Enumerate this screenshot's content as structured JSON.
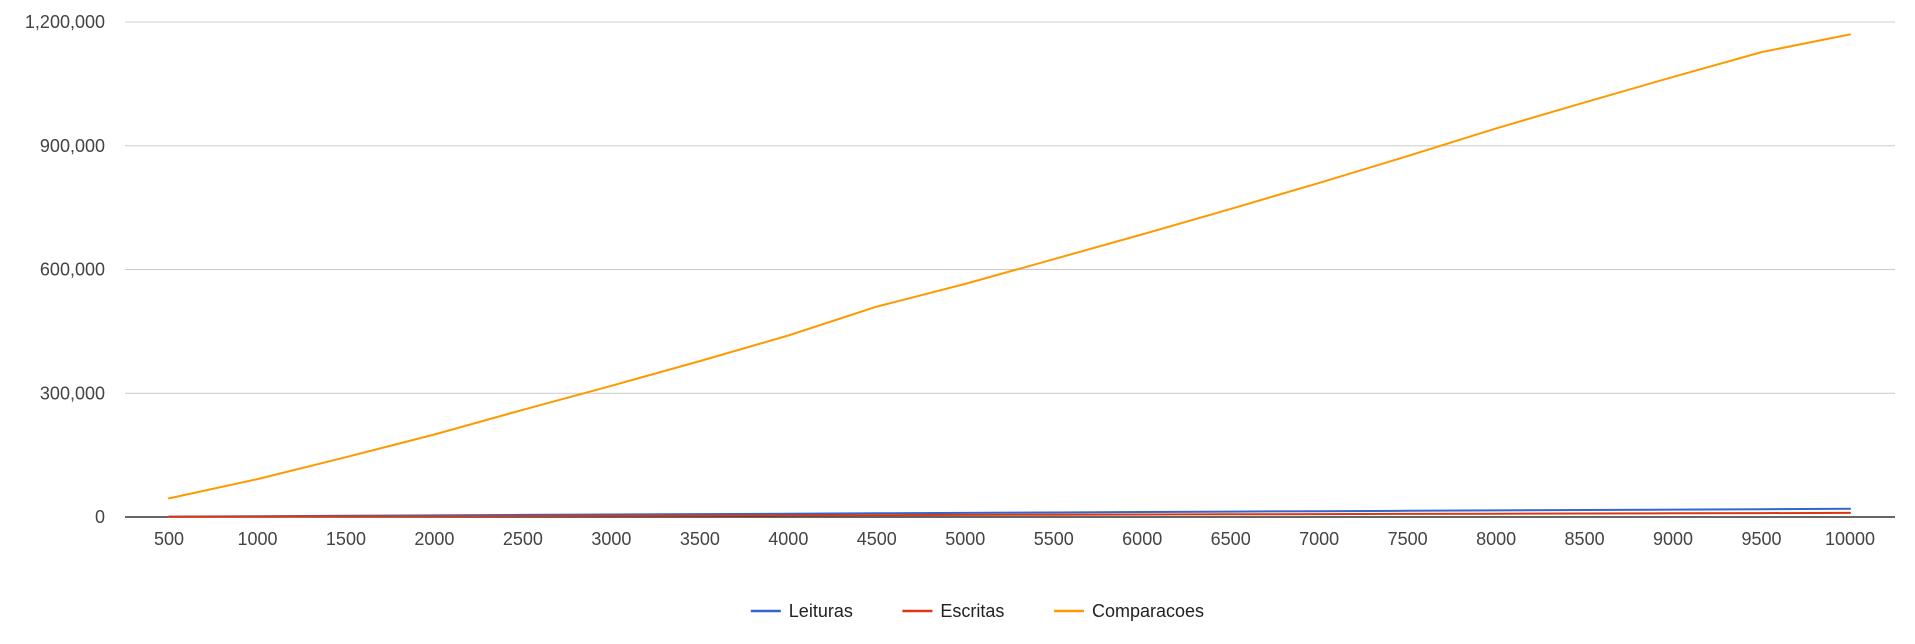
{
  "chart_data": {
    "type": "line",
    "title": "",
    "xlabel": "",
    "ylabel": "",
    "categories": [
      "500",
      "1000",
      "1500",
      "2000",
      "2500",
      "3000",
      "3500",
      "4000",
      "4500",
      "5000",
      "5500",
      "6000",
      "6500",
      "7000",
      "7500",
      "8000",
      "8500",
      "9000",
      "9500",
      "10000"
    ],
    "ylim": [
      0,
      1200000
    ],
    "yticks": [
      0,
      300000,
      600000,
      900000,
      1200000
    ],
    "ytick_labels": [
      "0",
      "300,000",
      "600,000",
      "900,000",
      "1,200,000"
    ],
    "grid": true,
    "legend_position": "bottom",
    "series": [
      {
        "name": "Leituras",
        "color": "#3366cc",
        "values": [
          1000,
          2000,
          3000,
          4000,
          5000,
          6000,
          7000,
          8000,
          9000,
          10000,
          11000,
          12000,
          13000,
          14000,
          15000,
          16000,
          17000,
          18000,
          19000,
          20000
        ]
      },
      {
        "name": "Escritas",
        "color": "#dc3912",
        "values": [
          500,
          1000,
          1500,
          2000,
          2500,
          3000,
          3500,
          4000,
          4500,
          5000,
          5500,
          6000,
          6500,
          7000,
          7500,
          8000,
          8500,
          9000,
          9500,
          10000
        ]
      },
      {
        "name": "Comparacoes",
        "color": "#ff9900",
        "values": [
          45000,
          92000,
          145000,
          200000,
          260000,
          318000,
          378000,
          440000,
          510000,
          565000,
          625000,
          685000,
          747000,
          810000,
          875000,
          942000,
          1005000,
          1067000,
          1127000,
          1170000
        ]
      }
    ]
  }
}
